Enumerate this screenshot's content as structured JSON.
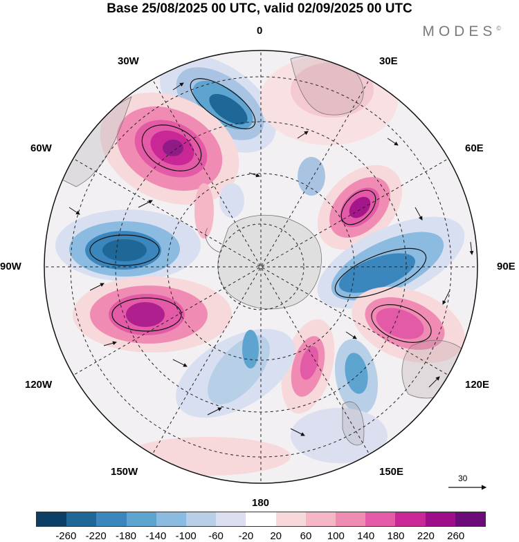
{
  "header": {
    "title": "Base 25/08/2025 00 UTC, valid 02/09/2025 00 UTC",
    "brand": "MODES",
    "brand_mark": "©"
  },
  "map": {
    "projection": "south-polar-stereographic",
    "longitude_labels": {
      "lon_0": "0",
      "lon_30e": "30E",
      "lon_60e": "60E",
      "lon_90e": "90E",
      "lon_120e": "120E",
      "lon_150e": "150E",
      "lon_180": "180",
      "lon_150w": "150W",
      "lon_120w": "120W",
      "lon_90w": "90W",
      "lon_60w": "60W",
      "lon_30w": "30W"
    },
    "vector_scale_label": "30"
  },
  "colorbar": {
    "colors": [
      "#0d3e66",
      "#1f6796",
      "#3b87bd",
      "#5ea4d1",
      "#8bbbe0",
      "#b8cfe8",
      "#dcdff0",
      "#ffffff",
      "#f7d9dc",
      "#f5b7c6",
      "#f08cb3",
      "#e35aa7",
      "#c92795",
      "#9c0f88",
      "#6b0c78"
    ],
    "tick_labels": [
      "-260",
      "-220",
      "-180",
      "-140",
      "-100",
      "-60",
      "-20",
      "20",
      "60",
      "100",
      "140",
      "180",
      "220",
      "260"
    ]
  }
}
